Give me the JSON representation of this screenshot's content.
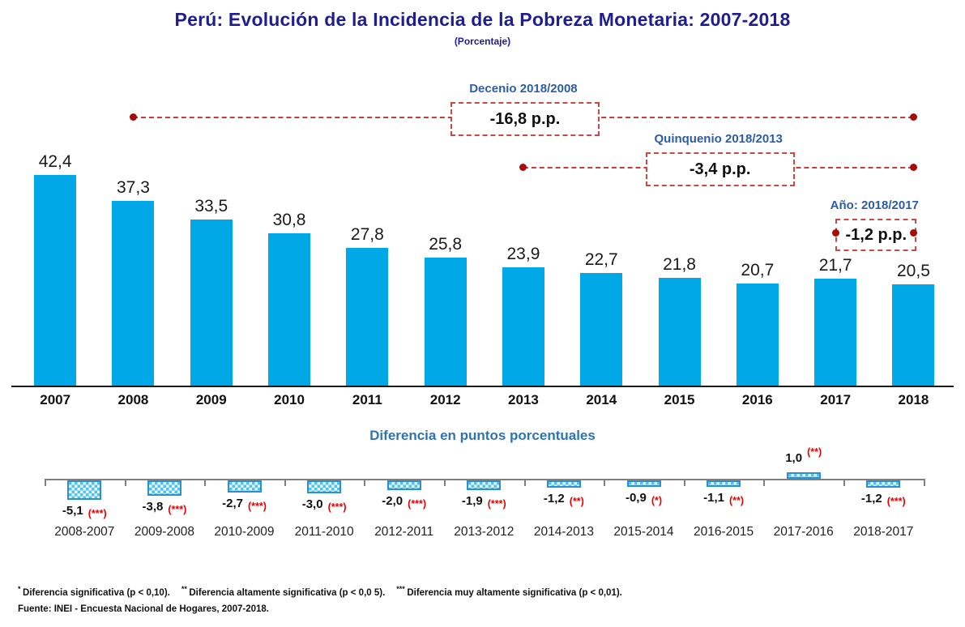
{
  "title": "Perú: Evolución de la Incidencia de la Pobreza Monetaria: 2007-2018",
  "subtitle": "(Porcentaje)",
  "diff_chart_title": "Diferencia en puntos porcentuales",
  "colors": {
    "title_navy": "#1F1D8F",
    "annotation_label_blue": "#2E5CA6",
    "section_title_blue": "#2E74B5",
    "bar_blue": "#00A8E8",
    "diff_bar_border": "#2B8FD0",
    "diff_bar_fill": "#4FC2EE",
    "dashed_red": "#C83C3C",
    "dot_red": "#A50D0D",
    "significance_red": "#E60000",
    "axis_gray": "#808080"
  },
  "chart_data": [
    {
      "type": "bar",
      "title": "Perú: Evolución de la Incidencia de la Pobreza Monetaria: 2007-2018 (Porcentaje)",
      "categories": [
        "2007",
        "2008",
        "2009",
        "2010",
        "2011",
        "2012",
        "2013",
        "2014",
        "2015",
        "2016",
        "2017",
        "2018"
      ],
      "values": [
        42.4,
        37.3,
        33.5,
        30.8,
        27.8,
        25.8,
        23.9,
        22.7,
        21.8,
        20.7,
        21.7,
        20.5
      ],
      "value_labels": [
        "42,4",
        "37,3",
        "33,5",
        "30,8",
        "27,8",
        "25,8",
        "23,9",
        "22,7",
        "21,8",
        "20,7",
        "21,7",
        "20,5"
      ],
      "xlabel": "",
      "ylabel": "",
      "ylim": [
        0,
        45
      ],
      "grid": false,
      "legend": "none"
    },
    {
      "type": "bar",
      "title": "Diferencia en puntos porcentuales",
      "categories": [
        "2008-2007",
        "2009-2008",
        "2010-2009",
        "2011-2010",
        "2012-2011",
        "2013-2012",
        "2014-2013",
        "2015-2014",
        "2016-2015",
        "2017-2016",
        "2018-2017"
      ],
      "values": [
        -5.1,
        -3.8,
        -2.7,
        -3.0,
        -2.0,
        -1.9,
        -1.2,
        -0.9,
        -1.1,
        1.0,
        -1.2
      ],
      "value_labels": [
        "-5,1",
        "-3,8",
        "-2,7",
        "-3,0",
        "-2,0",
        "-1,9",
        "-1,2",
        "-0,9",
        "-1,1",
        "1,0",
        "-1,2"
      ],
      "significance": [
        "(***)",
        "(***)",
        "(***)",
        "(***)",
        "(***)",
        "(***)",
        "(**)",
        "(*)",
        "(**)",
        "(**)",
        "(***)"
      ],
      "xlabel": "",
      "ylabel": "",
      "ylim": [
        -6,
        2
      ],
      "grid": false,
      "legend": "none"
    }
  ],
  "annotations": [
    {
      "label": "Decenio 2018/2008",
      "value": "-16,8 p.p.",
      "from": "2008",
      "to": "2018"
    },
    {
      "label": "Quinquenio 2018/2013",
      "value": "-3,4 p.p.",
      "from": "2013",
      "to": "2018"
    },
    {
      "label": "Año: 2018/2017",
      "value": "-1,2 p.p.",
      "from": "2017",
      "to": "2018"
    }
  ],
  "footnotes": {
    "significance": [
      {
        "marker": "*",
        "text": "Diferencia significativa (p <  0,10)."
      },
      {
        "marker": "**",
        "text": "Diferencia altamente significativa (p < 0,0 5)."
      },
      {
        "marker": "***",
        "text": "Diferencia muy altamente significativa (p < 0,01)."
      }
    ],
    "source": "Fuente: INEI - Encuesta Nacional de Hogares, 2007-2018."
  }
}
